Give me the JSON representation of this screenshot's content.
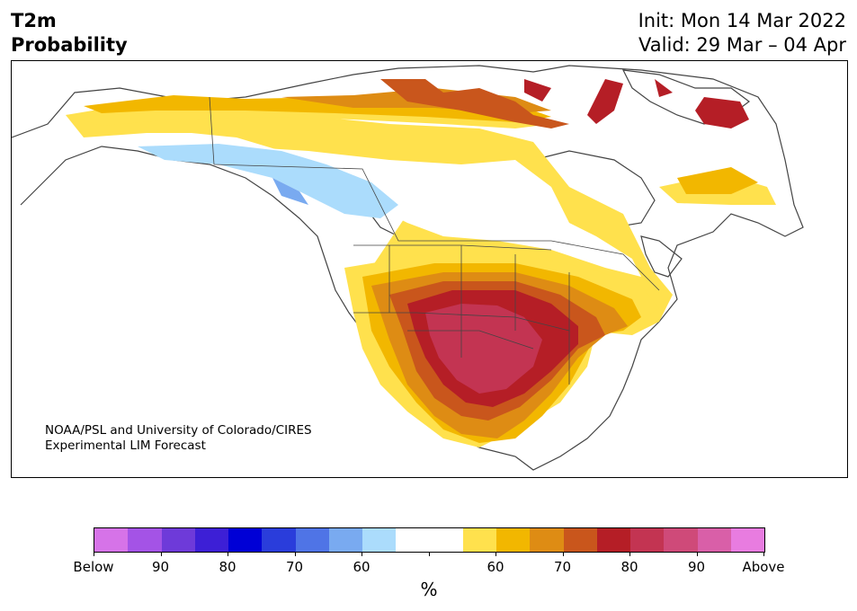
{
  "header": {
    "title_line1": "T2m",
    "title_line2": "Probability",
    "init": "Init: Mon 14 Mar 2022",
    "valid": "Valid: 29 Mar – 04 Apr"
  },
  "credit": {
    "line1": "NOAA/PSL and University of Colorado/CIRES",
    "line2": "Experimental LIM Forecast"
  },
  "colorbar": {
    "colors": [
      "#d673e8",
      "#a453e6",
      "#6e3ad9",
      "#3d1fd6",
      "#0000d6",
      "#2a3ddb",
      "#4f74e6",
      "#79aaf0",
      "#abdcfc",
      "#ffffff",
      "#ffffff",
      "#ffe14d",
      "#f2b700",
      "#de8c14",
      "#c9561c",
      "#b51e26",
      "#c33452",
      "#cf4a79",
      "#d95fa8",
      "#e87ce0"
    ],
    "labels": [
      "Below",
      "90",
      "80",
      "70",
      "60",
      "",
      "60",
      "70",
      "80",
      "90",
      "Above"
    ],
    "unit": "%"
  }
}
